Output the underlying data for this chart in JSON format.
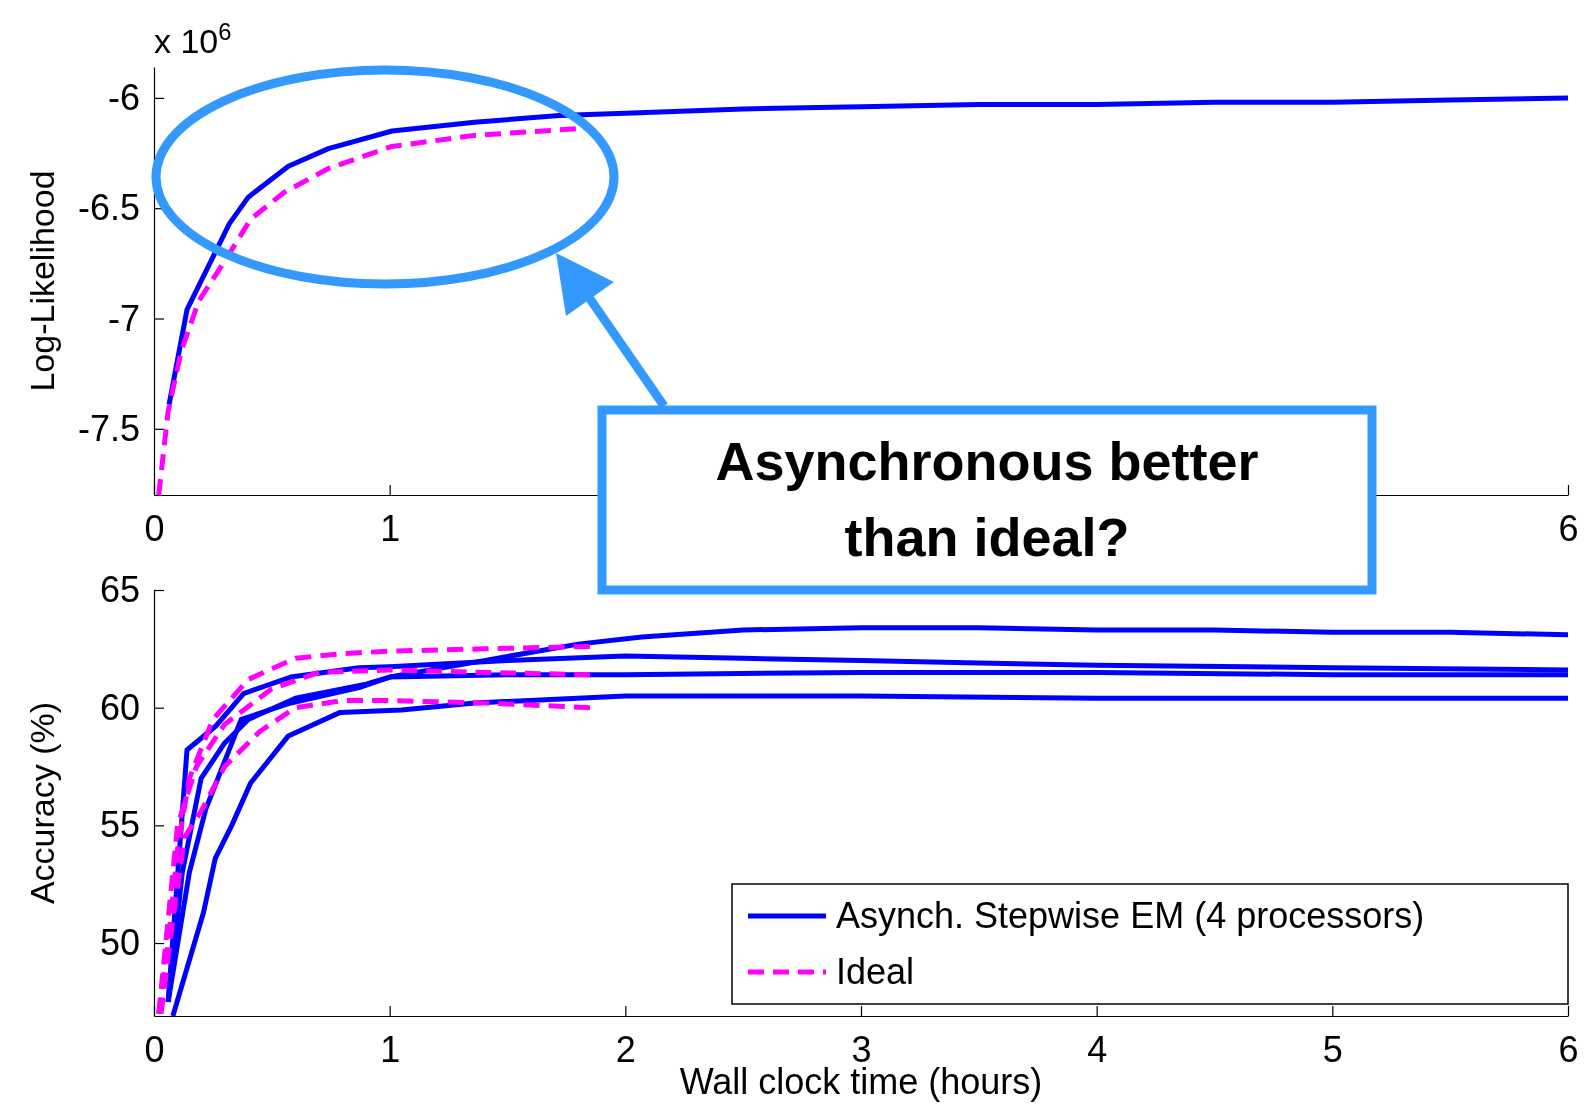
{
  "chart_data": [
    {
      "type": "line",
      "ylabel": "Log-Likelihood",
      "xlim": [
        0,
        6
      ],
      "xticks": [
        0,
        1,
        6
      ],
      "ylim": [
        -7.8,
        -5.86
      ],
      "yticks": [
        -7.5,
        -7,
        -6.5,
        -6
      ],
      "annotations": [
        "x 10$^{6}$",
        "Asynchronous better than ideal?"
      ],
      "series": [
        {
          "color": "#0000ff",
          "line_style": "solid",
          "x": [
            0.064,
            0.14,
            0.32,
            0.4,
            0.57,
            0.74,
            1.01,
            1.36,
            1.72,
            2,
            2.5,
            3,
            3.5,
            4,
            4.5,
            5,
            5.5,
            6
          ],
          "values": [
            -7.39,
            -6.96,
            -6.57,
            -6.45,
            -6.31,
            -6.23,
            -6.15,
            -6.11,
            -6.08,
            -6.07,
            -6.05,
            -6.04,
            -6.03,
            -6.03,
            -6.02,
            -6.02,
            -6.01,
            -6.0
          ]
        },
        {
          "color": "#ff00ff",
          "line_style": "dashed",
          "x": [
            0.02,
            0.06,
            0.115,
            0.19,
            0.3,
            0.41,
            0.55,
            0.74,
            1.01,
            1.36,
            1.79
          ],
          "values": [
            -7.8,
            -7.42,
            -7.15,
            -6.92,
            -6.74,
            -6.55,
            -6.43,
            -6.32,
            -6.22,
            -6.17,
            -6.14
          ]
        }
      ]
    },
    {
      "type": "line",
      "xlabel": "Wall clock time (hours)",
      "ylabel": "Accuracy (%)",
      "xlim": [
        0,
        6
      ],
      "xticks": [
        0,
        1,
        2,
        3,
        4,
        5,
        6
      ],
      "ylim": [
        46.9,
        65
      ],
      "yticks": [
        50,
        55,
        60,
        65
      ],
      "legend": "bottom right",
      "series": [
        {
          "name": "Asynch. Stepwise EM (4 processors)",
          "color": "#0000ff",
          "line_style": "solid",
          "x": [
            0.06,
            0.15,
            0.22,
            0.37,
            0.58,
            0.87,
            1.0,
            1.4,
            1.8,
            2.07,
            2.5,
            3,
            3.5,
            4,
            4.5,
            5,
            5.5,
            6
          ],
          "values": [
            47.5,
            53,
            55.7,
            59.5,
            60.2,
            60.85,
            61.3,
            62.0,
            62.7,
            63.0,
            63.3,
            63.4,
            63.4,
            63.3,
            63.3,
            63.2,
            63.2,
            63.1
          ]
        },
        {
          "color": "#0000ff",
          "line_style": "solid",
          "x": [
            0.06,
            0.14,
            0.26,
            0.38,
            0.58,
            0.87,
            1.0,
            1.5,
            2,
            2.5,
            3,
            3.5,
            4,
            5,
            6
          ],
          "values": [
            47.5,
            58.2,
            59.2,
            60.6,
            61.3,
            61.7,
            61.74,
            62.0,
            62.2,
            62.1,
            62.0,
            61.9,
            61.8,
            61.7,
            61.6
          ]
        },
        {
          "color": "#0000ff",
          "line_style": "solid",
          "x": [
            0.06,
            0.12,
            0.2,
            0.3,
            0.4,
            0.6,
            0.9,
            1.0,
            1.5,
            2,
            3,
            4,
            5,
            6
          ],
          "values": [
            47.5,
            53,
            57,
            58.5,
            59.5,
            60.4,
            61.0,
            61.3,
            61.4,
            61.4,
            61.5,
            61.5,
            61.4,
            61.4
          ]
        },
        {
          "color": "#0000ff",
          "line_style": "solid",
          "x": [
            0.08,
            0.21,
            0.26,
            0.33,
            0.41,
            0.57,
            0.79,
            1.05,
            1.36,
            2,
            3,
            4,
            5,
            6
          ],
          "values": [
            46.9,
            51.3,
            53.6,
            55.0,
            56.8,
            58.8,
            59.8,
            59.9,
            60.2,
            60.5,
            60.5,
            60.4,
            60.4,
            60.4
          ]
        },
        {
          "name": "Ideal",
          "color": "#ff00ff",
          "line_style": "dashed",
          "x": [
            0.02,
            0.06,
            0.1,
            0.15,
            0.25,
            0.4,
            0.6,
            0.8,
            1.0,
            1.4,
            1.85
          ],
          "values": [
            47,
            50,
            54,
            57,
            59.5,
            61.2,
            62.1,
            62.3,
            62.4,
            62.5,
            62.6
          ]
        },
        {
          "color": "#ff00ff",
          "line_style": "dashed",
          "x": [
            0.02,
            0.06,
            0.1,
            0.18,
            0.3,
            0.5,
            0.7,
            1.0,
            1.4,
            1.85
          ],
          "values": [
            47,
            51,
            55,
            57.5,
            59.3,
            60.8,
            61.5,
            61.6,
            61.5,
            61.4
          ]
        },
        {
          "color": "#ff00ff",
          "line_style": "dashed",
          "x": [
            0.03,
            0.08,
            0.13,
            0.2,
            0.3,
            0.45,
            0.6,
            0.8,
            1.0,
            1.4,
            1.85
          ],
          "values": [
            47,
            51,
            54.5,
            55.6,
            57.5,
            59.0,
            60.0,
            60.3,
            60.3,
            60.2,
            60.0
          ]
        }
      ]
    }
  ]
}
